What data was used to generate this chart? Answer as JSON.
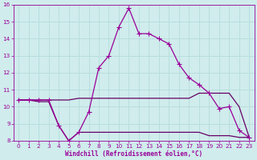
{
  "xlabel": "Windchill (Refroidissement éolien,°C)",
  "background_color": "#d0ecec",
  "grid_color": "#b8dede",
  "line_color": "#990099",
  "line_color2": "#660066",
  "x_hours": [
    0,
    1,
    2,
    3,
    4,
    5,
    6,
    7,
    8,
    9,
    10,
    11,
    12,
    13,
    14,
    15,
    16,
    17,
    18,
    19,
    20,
    21,
    22,
    23
  ],
  "series_main": [
    10.4,
    10.4,
    10.4,
    10.4,
    8.9,
    8.0,
    8.5,
    9.7,
    12.3,
    13.0,
    14.7,
    15.8,
    14.3,
    14.3,
    14.0,
    13.7,
    12.5,
    11.7,
    11.3,
    10.8,
    9.9,
    10.0,
    8.6,
    8.2
  ],
  "series_upper": [
    10.4,
    10.4,
    10.4,
    10.4,
    10.4,
    10.4,
    10.5,
    10.5,
    10.5,
    10.5,
    10.5,
    10.5,
    10.5,
    10.5,
    10.5,
    10.5,
    10.5,
    10.5,
    10.8,
    10.8,
    10.8,
    10.8,
    10.0,
    8.2
  ],
  "series_lower": [
    10.4,
    10.4,
    10.3,
    10.3,
    8.9,
    8.0,
    8.5,
    8.5,
    8.5,
    8.5,
    8.5,
    8.5,
    8.5,
    8.5,
    8.5,
    8.5,
    8.5,
    8.5,
    8.5,
    8.3,
    8.3,
    8.3,
    8.2,
    8.2
  ],
  "ylim": [
    8,
    16
  ],
  "yticks": [
    8,
    9,
    10,
    11,
    12,
    13,
    14,
    15,
    16
  ],
  "xlim": [
    -0.5,
    23.5
  ],
  "xticks": [
    0,
    1,
    2,
    3,
    4,
    5,
    6,
    7,
    8,
    9,
    10,
    11,
    12,
    13,
    14,
    15,
    16,
    17,
    18,
    19,
    20,
    21,
    22,
    23
  ]
}
